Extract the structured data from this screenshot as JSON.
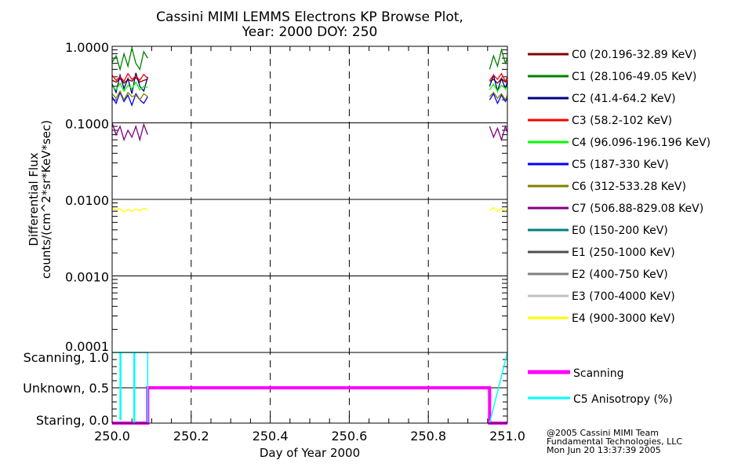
{
  "chart_data": [
    {
      "type": "line",
      "title": "Cassini MIMI LEMMS Electrons KP Browse Plot,",
      "subtitle": "Year: 2000 DOY: 250",
      "ylabel_line1": "Differential Flux",
      "ylabel_line2": "counts/(cm^2*sr*KeV*sec)",
      "yscale": "log",
      "ylim": [
        0.0001,
        1.0
      ],
      "xlim": [
        250.0,
        251.0
      ],
      "ytick_labels": [
        "1.0000",
        "0.1000",
        "0.0100",
        "0.0010",
        "0.0001"
      ],
      "ytick_values": [
        1.0,
        0.1,
        0.01,
        0.001,
        0.0001
      ],
      "grid": true,
      "legend_placement": "right",
      "segment_x": [
        [
          250.0,
          250.01,
          250.02,
          250.03,
          250.04,
          250.05,
          250.06,
          250.07,
          250.08,
          250.09
        ],
        [
          250.955,
          250.965,
          250.975,
          250.985,
          250.995,
          251.0
        ]
      ],
      "series": [
        {
          "name": "C0 (20.196-32.89 KeV)",
          "color": "#800000",
          "segments": [
            [
              0.36,
              0.34,
              0.38,
              0.33,
              0.37,
              0.35,
              0.39,
              0.34,
              0.36,
              0.37
            ],
            [
              0.35,
              0.37,
              0.33,
              0.38,
              0.34,
              0.36
            ]
          ]
        },
        {
          "name": "C1 (28.106-49.05 KeV)",
          "color": "#008000",
          "segments": [
            [
              0.62,
              0.75,
              0.5,
              0.8,
              0.55,
              0.95,
              0.6,
              0.5,
              0.85,
              0.7
            ],
            [
              0.5,
              0.75,
              0.55,
              0.9,
              0.6,
              0.7
            ]
          ]
        },
        {
          "name": "C2 (41.4-64.2 KeV)",
          "color": "#000080",
          "segments": [
            [
              0.32,
              0.25,
              0.42,
              0.28,
              0.38,
              0.24,
              0.45,
              0.3,
              0.26,
              0.4
            ],
            [
              0.3,
              0.42,
              0.26,
              0.38,
              0.28,
              0.35
            ]
          ]
        },
        {
          "name": "C3 (58.2-102 KeV)",
          "color": "#ff0000",
          "segments": [
            [
              0.42,
              0.36,
              0.4,
              0.35,
              0.44,
              0.37,
              0.41,
              0.36,
              0.43,
              0.38
            ],
            [
              0.36,
              0.42,
              0.37,
              0.44,
              0.35,
              0.4
            ]
          ]
        },
        {
          "name": "C4 (96.096-196.196 KeV)",
          "color": "#00ff00",
          "segments": [
            [
              0.3,
              0.27,
              0.33,
              0.26,
              0.31,
              0.28,
              0.34,
              0.27,
              0.3,
              0.29
            ],
            [
              0.27,
              0.32,
              0.26,
              0.31,
              0.28,
              0.3
            ]
          ]
        },
        {
          "name": "C5 (187-330 KeV)",
          "color": "#0000ff",
          "segments": [
            [
              0.22,
              0.18,
              0.25,
              0.19,
              0.23,
              0.17,
              0.24,
              0.2,
              0.18,
              0.22
            ],
            [
              0.2,
              0.24,
              0.18,
              0.23,
              0.19,
              0.21
            ]
          ]
        },
        {
          "name": "C6 (312-533.28 KeV)",
          "color": "#808000",
          "segments": [
            [
              0.24,
              0.21,
              0.26,
              0.2,
              0.25,
              0.22,
              0.23,
              0.2,
              0.24,
              0.22
            ],
            [
              0.22,
              0.25,
              0.21,
              0.24,
              0.2,
              0.23
            ]
          ]
        },
        {
          "name": "C7 (506.88-829.08 KeV)",
          "color": "#800080",
          "segments": [
            [
              0.1,
              0.07,
              0.09,
              0.06,
              0.08,
              0.065,
              0.09,
              0.06,
              0.095,
              0.07
            ],
            [
              0.09,
              0.065,
              0.085,
              0.06,
              0.09,
              0.075
            ]
          ]
        },
        {
          "name": "E0 (150-200 KeV)",
          "color": "#008080",
          "segments": []
        },
        {
          "name": "E1 (250-1000 KeV)",
          "color": "#505050",
          "segments": []
        },
        {
          "name": "E2 (400-750 KeV)",
          "color": "#808080",
          "segments": []
        },
        {
          "name": "E3 (700-4000 KeV)",
          "color": "#c0c0c0",
          "segments": []
        },
        {
          "name": "E4 (900-3000 KeV)",
          "color": "#ffff00",
          "segments": [
            [
              0.0078,
              0.0072,
              0.0076,
              0.0068,
              0.0074,
              0.007,
              0.0075,
              0.0071,
              0.0077,
              0.0073
            ],
            [
              0.0072,
              0.0078,
              0.007,
              0.0076,
              0.0071,
              0.0074
            ]
          ]
        }
      ]
    },
    {
      "type": "line",
      "xlabel": "Day of Year 2000",
      "xlim": [
        250.0,
        251.0
      ],
      "ylim": [
        0.0,
        1.0
      ],
      "xtick_labels": [
        "250.0",
        "250.2",
        "250.4",
        "250.6",
        "250.8",
        "251.0"
      ],
      "xtick_values": [
        250.0,
        250.2,
        250.4,
        250.6,
        250.8,
        251.0
      ],
      "ytick_labels": [
        "Scanning, 1.0",
        "Unknown, 0.5",
        "Staring, 0.0"
      ],
      "ytick_values": [
        1.0,
        0.5,
        0.0
      ],
      "legend_placement": "right",
      "series": [
        {
          "name": "Scanning",
          "color": "#ff00ff",
          "x": [
            250.0,
            250.09,
            250.09,
            250.955,
            250.955,
            251.0
          ],
          "y": [
            0.0,
            0.0,
            0.5,
            0.5,
            0.0,
            0.0
          ]
        },
        {
          "name": "C5 Anisotropy (%)",
          "color": "#00ffff",
          "x": [
            250.0,
            250.02,
            250.02,
            250.022,
            250.022,
            250.055,
            250.055,
            250.057,
            250.057,
            250.09,
            250.09,
            250.955,
            250.955,
            251.0
          ],
          "y": [
            1.0,
            1.0,
            0.05,
            0.05,
            1.0,
            1.0,
            0.0,
            0.0,
            1.0,
            1.0,
            0.0,
            null,
            0.0,
            1.0
          ]
        }
      ]
    }
  ],
  "footer": {
    "line1": "@2005 Cassini MIMI Team",
    "line2": "Fundamental Technologies, LLC",
    "line3": "Mon Jun 20 13:37:39 2005"
  }
}
